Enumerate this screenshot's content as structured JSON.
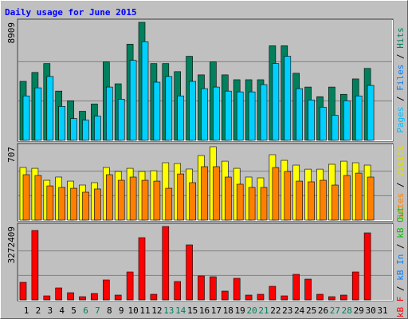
{
  "title": "Daily usage for June 2015",
  "legend_separator": " / ",
  "chart_data": [
    {
      "type": "bar",
      "ylim": [
        0,
        8909
      ],
      "yticks": [
        8909
      ],
      "grid_divisions": 3,
      "legend": [
        {
          "label": "Pages",
          "color": "#00c0ff"
        },
        {
          "label": "Files",
          "color": "#0080ff"
        },
        {
          "label": "Hits",
          "color": "#008060"
        }
      ],
      "series": [
        {
          "name": "Hits",
          "color": "#00805c",
          "values": [
            4454,
            5126,
            5797,
            3722,
            2990,
            2197,
            2746,
            5919,
            4271,
            7262,
            8909,
            5797,
            5797,
            5187,
            6346,
            4943,
            5919,
            4943,
            4577,
            4577,
            4577,
            7140,
            7140,
            5065,
            4027,
            3295,
            4027,
            3478,
            4638,
            5431,
            null
          ]
        },
        {
          "name": "Files",
          "color": "#00d0ff",
          "values": [
            3356,
            3966,
            4821,
            2563,
            1648,
            1526,
            1831,
            4027,
            3112,
            6041,
            7445,
            4393,
            4821,
            3356,
            4454,
            3905,
            4027,
            3722,
            3661,
            3661,
            4210,
            5797,
            6346,
            3905,
            3051,
            2502,
            1892,
            2990,
            3356,
            4149,
            null
          ]
        }
      ]
    },
    {
      "type": "bar",
      "ylim": [
        0,
        707
      ],
      "yticks": [
        707
      ],
      "grid_divisions": 3,
      "legend": [
        {
          "label": "Sites",
          "color": "#ff8000"
        },
        {
          "label": "Visits",
          "color": "#e0e000"
        }
      ],
      "series": [
        {
          "name": "Visits",
          "color": "#ffff00",
          "values": [
            507,
            499,
            384,
            415,
            376,
            338,
            361,
            507,
            469,
            499,
            469,
            476,
            553,
            545,
            492,
            622,
            707,
            568,
            499,
            415,
            407,
            630,
            576,
            530,
            491,
            491,
            538,
            568,
            553,
            530,
            null
          ]
        },
        {
          "name": "Sites",
          "color": "#ff8000",
          "values": [
            438,
            430,
            330,
            315,
            307,
            269,
            300,
            438,
            384,
            415,
            384,
            376,
            307,
            445,
            361,
            515,
            515,
            415,
            346,
            315,
            315,
            507,
            469,
            376,
            369,
            384,
            338,
            430,
            453,
            415,
            null
          ]
        }
      ]
    },
    {
      "type": "bar",
      "ylim": [
        0,
        3272409
      ],
      "yticks": [
        3272409
      ],
      "grid_divisions": 3,
      "legend": [
        {
          "label": "kB F",
          "color": "#ff0000"
        },
        {
          "label": "kB In",
          "color": "#0080ff"
        },
        {
          "label": "kB Out",
          "color": "#00c000"
        }
      ],
      "series": [
        {
          "name": "kB F",
          "color": "#ff0000",
          "values": [
            782522,
            3094600,
            177850,
            533561,
            320136,
            142282,
            284565,
            889275,
            213418,
            1244963,
            2774455,
            248996,
            3272409,
            818110,
            2454325,
            1067101,
            1031531,
            391274,
            960379,
            213418,
            248996,
            604685,
            177850,
            1138248,
            924809,
            248996,
            142282,
            213418,
            1244963,
            2987892,
            null
          ]
        }
      ],
      "categories": [
        "1",
        "2",
        "3",
        "4",
        "5",
        "6",
        "7",
        "8",
        "9",
        "10",
        "11",
        "12",
        "13",
        "14",
        "15",
        "16",
        "17",
        "18",
        "19",
        "20",
        "21",
        "22",
        "23",
        "24",
        "25",
        "26",
        "27",
        "28",
        "29",
        "30",
        "31"
      ],
      "category_colors": [
        "#000000",
        "#000000",
        "#000000",
        "#000000",
        "#000000",
        "#00805c",
        "#00805c",
        "#000000",
        "#000000",
        "#000000",
        "#000000",
        "#000000",
        "#00805c",
        "#00805c",
        "#000000",
        "#000000",
        "#000000",
        "#000000",
        "#000000",
        "#00805c",
        "#00805c",
        "#000000",
        "#000000",
        "#000000",
        "#000000",
        "#000000",
        "#00805c",
        "#00805c",
        "#000000",
        "#000000",
        "#000000"
      ]
    }
  ]
}
